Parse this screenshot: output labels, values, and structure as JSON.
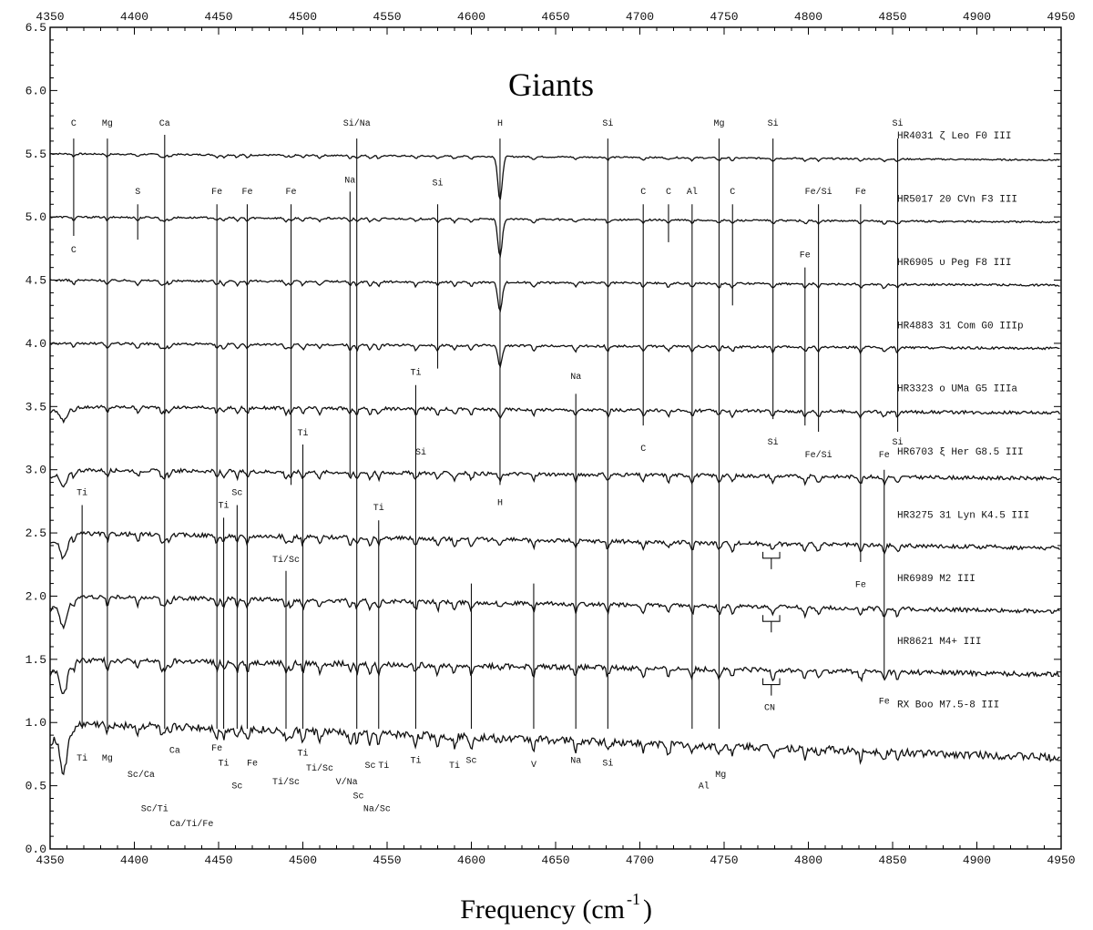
{
  "chart_data": {
    "type": "line",
    "title": "Giants",
    "xlabel": "Frequency (cm",
    "xlabel_sup": "-1",
    "xlabel_close": ")",
    "ylabel": "",
    "xlim": [
      4350,
      4950
    ],
    "ylim": [
      0.0,
      6.5
    ],
    "xticks": [
      "4350",
      "4400",
      "4450",
      "4500",
      "4550",
      "4600",
      "4650",
      "4700",
      "4750",
      "4800",
      "4850",
      "4900",
      "4950"
    ],
    "yticks": [
      "0.0",
      "0.5",
      "1.0",
      "1.5",
      "2.0",
      "2.5",
      "3.0",
      "3.5",
      "4.0",
      "4.5",
      "5.0",
      "5.5",
      "6.0",
      "6.5"
    ],
    "series": [
      {
        "name": "HR4031 ζ Leo F0 III",
        "offset": 5.5,
        "noise": 0.006,
        "slope": -0.05,
        "edge": 0.0,
        "deep": 0.35
      },
      {
        "name": "HR5017 20 CVn F3 III",
        "offset": 5.0,
        "noise": 0.007,
        "slope": -0.04,
        "edge": 0.0,
        "deep": 0.3
      },
      {
        "name": "HR6905 υ Peg F8 III",
        "offset": 4.5,
        "noise": 0.008,
        "slope": -0.04,
        "edge": 0.0,
        "deep": 0.22
      },
      {
        "name": "HR4883 31 Com G0 IIIp",
        "offset": 4.0,
        "noise": 0.009,
        "slope": -0.04,
        "edge": 0.0,
        "deep": 0.16
      },
      {
        "name": "HR3323 o UMa G5 IIIa",
        "offset": 3.5,
        "noise": 0.012,
        "slope": -0.05,
        "edge": 0.1,
        "deep": 0.06
      },
      {
        "name": "HR6703 ξ Her G8.5 III",
        "offset": 3.0,
        "noise": 0.014,
        "slope": -0.07,
        "edge": 0.12,
        "deep": 0.05
      },
      {
        "name": "HR3275 31 Lyn K4.5 III",
        "offset": 2.5,
        "noise": 0.016,
        "slope": -0.12,
        "edge": 0.18,
        "deep": 0.03
      },
      {
        "name": "HR6989 M2 III",
        "offset": 2.0,
        "noise": 0.016,
        "slope": -0.12,
        "edge": 0.22,
        "deep": 0.02
      },
      {
        "name": "HR8621 M4+ III",
        "offset": 1.5,
        "noise": 0.02,
        "slope": -0.12,
        "edge": 0.25,
        "deep": 0.02
      },
      {
        "name": "RX Boo M7.5-8 III",
        "offset": 1.0,
        "noise": 0.03,
        "slope": -0.28,
        "edge": 0.35,
        "deep": 0.02
      }
    ],
    "annotations": [
      {
        "text": "C",
        "x": 4364,
        "y": 5.72,
        "top": 5.62,
        "bot": 4.85
      },
      {
        "text": "C",
        "x": 4364,
        "y": 4.72,
        "top": null,
        "bot": null
      },
      {
        "text": "Mg",
        "x": 4384,
        "y": 5.72,
        "top": 5.62,
        "bot": 0.95
      },
      {
        "text": "Mg",
        "x": 4384,
        "y": 0.7,
        "top": null,
        "bot": null
      },
      {
        "text": "Ca",
        "x": 4418,
        "y": 5.72,
        "top": 5.65,
        "bot": 0.95
      },
      {
        "text": "S",
        "x": 4402,
        "y": 5.18,
        "top": 5.1,
        "bot": 4.82
      },
      {
        "text": "Fe",
        "x": 4449,
        "y": 5.18,
        "top": 5.1,
        "bot": 0.95
      },
      {
        "text": "Fe",
        "x": 4467,
        "y": 5.18,
        "top": 5.1,
        "bot": 0.95
      },
      {
        "text": "Fe",
        "x": 4493,
        "y": 5.18,
        "top": 5.1,
        "bot": 2.88
      },
      {
        "text": "Na",
        "x": 4528,
        "y": 5.27,
        "top": 5.2,
        "bot": 2.95
      },
      {
        "text": "Si/Na",
        "x": 4532,
        "y": 5.72,
        "top": 5.62,
        "bot": 0.95
      },
      {
        "text": "Si",
        "x": 4580,
        "y": 5.25,
        "top": 5.1,
        "bot": 3.8
      },
      {
        "text": "H",
        "x": 4617,
        "y": 5.72,
        "top": 5.62,
        "bot": 2.88
      },
      {
        "text": "H",
        "x": 4617,
        "y": 2.72,
        "top": null,
        "bot": null
      },
      {
        "text": "Si",
        "x": 4681,
        "y": 5.72,
        "top": 5.62,
        "bot": 0.95
      },
      {
        "text": "C",
        "x": 4702,
        "y": 5.18,
        "top": 5.1,
        "bot": 3.35
      },
      {
        "text": "C",
        "x": 4702,
        "y": 3.15,
        "top": null,
        "bot": null
      },
      {
        "text": "C",
        "x": 4717,
        "y": 5.18,
        "top": 5.1,
        "bot": 4.8
      },
      {
        "text": "Al",
        "x": 4731,
        "y": 5.18,
        "top": 5.1,
        "bot": 0.95
      },
      {
        "text": "C",
        "x": 4755,
        "y": 5.18,
        "top": 5.1,
        "bot": 4.3
      },
      {
        "text": "Mg",
        "x": 4747,
        "y": 5.72,
        "top": 5.62,
        "bot": 0.95
      },
      {
        "text": "Si",
        "x": 4779,
        "y": 5.72,
        "top": 5.62,
        "bot": 3.4
      },
      {
        "text": "Si",
        "x": 4779,
        "y": 3.2,
        "top": null,
        "bot": null
      },
      {
        "text": "Fe/Si",
        "x": 4806,
        "y": 5.18,
        "top": 5.1,
        "bot": 3.3
      },
      {
        "text": "Fe/Si",
        "x": 4806,
        "y": 3.1,
        "top": null,
        "bot": null
      },
      {
        "text": "Fe",
        "x": 4798,
        "y": 4.68,
        "top": 4.6,
        "bot": 3.35
      },
      {
        "text": "Fe",
        "x": 4831,
        "y": 5.18,
        "top": 5.1,
        "bot": 2.27
      },
      {
        "text": "Fe",
        "x": 4831,
        "y": 2.07,
        "top": null,
        "bot": null
      },
      {
        "text": "Si",
        "x": 4853,
        "y": 5.72,
        "top": 5.62,
        "bot": 3.3
      },
      {
        "text": "Si",
        "x": 4853,
        "y": 3.2,
        "top": null,
        "bot": null
      },
      {
        "text": "Fe",
        "x": 4845,
        "y": 3.1,
        "top": 3.0,
        "bot": 1.35
      },
      {
        "text": "Fe",
        "x": 4845,
        "y": 1.15,
        "top": null,
        "bot": null
      },
      {
        "text": "Na",
        "x": 4662,
        "y": 3.72,
        "top": 3.6,
        "bot": 0.95
      },
      {
        "text": "Na",
        "x": 4662,
        "y": 0.68,
        "top": null,
        "bot": null
      },
      {
        "text": "Ti",
        "x": 4567,
        "y": 3.75,
        "top": 3.67,
        "bot": 0.95
      },
      {
        "text": "Si",
        "x": 4570,
        "y": 3.12,
        "top": null,
        "bot": null
      },
      {
        "text": "Ti",
        "x": 4500,
        "y": 3.27,
        "top": 3.2,
        "bot": 0.95
      },
      {
        "text": "Ti",
        "x": 4369,
        "y": 2.8,
        "top": 2.72,
        "bot": 0.95
      },
      {
        "text": "Ti",
        "x": 4369,
        "y": 0.7,
        "top": null,
        "bot": null
      },
      {
        "text": "Ti",
        "x": 4453,
        "y": 2.7,
        "top": 2.62,
        "bot": 0.95
      },
      {
        "text": "Sc",
        "x": 4461,
        "y": 2.8,
        "top": 2.72,
        "bot": 0.95
      },
      {
        "text": "Ti",
        "x": 4545,
        "y": 2.68,
        "top": 2.6,
        "bot": 0.95
      },
      {
        "text": "Ti/Sc",
        "x": 4490,
        "y": 2.27,
        "top": 2.2,
        "bot": 0.95
      },
      {
        "text": "Sc",
        "x": 4600,
        "y": 0.68,
        "top": 2.1,
        "bot": 0.95
      },
      {
        "text": "V",
        "x": 4637,
        "y": 0.65,
        "top": 2.1,
        "bot": 0.95
      },
      {
        "text": "CN",
        "x": 4777,
        "y": 1.1,
        "top": null,
        "bot": null
      },
      {
        "text": "Fe",
        "x": 4449,
        "y": 0.78,
        "top": null,
        "bot": null
      },
      {
        "text": "Ti",
        "x": 4453,
        "y": 0.66,
        "top": null,
        "bot": null
      },
      {
        "text": "Sc",
        "x": 4461,
        "y": 0.48,
        "top": null,
        "bot": null
      },
      {
        "text": "Fe",
        "x": 4470,
        "y": 0.66,
        "top": null,
        "bot": null
      },
      {
        "text": "Ti/Sc",
        "x": 4490,
        "y": 0.51,
        "top": null,
        "bot": null
      },
      {
        "text": "Ti",
        "x": 4500,
        "y": 0.74,
        "top": null,
        "bot": null
      },
      {
        "text": "Ti/Sc",
        "x": 4510,
        "y": 0.62,
        "top": null,
        "bot": null
      },
      {
        "text": "V/Na",
        "x": 4526,
        "y": 0.51,
        "top": null,
        "bot": null
      },
      {
        "text": "Sc",
        "x": 4533,
        "y": 0.4,
        "top": null,
        "bot": null
      },
      {
        "text": "Sc",
        "x": 4540,
        "y": 0.64,
        "top": null,
        "bot": null
      },
      {
        "text": "Ti",
        "x": 4548,
        "y": 0.64,
        "top": null,
        "bot": null
      },
      {
        "text": "Na/Sc",
        "x": 4544,
        "y": 0.3,
        "top": null,
        "bot": null
      },
      {
        "text": "Ti",
        "x": 4567,
        "y": 0.68,
        "top": null,
        "bot": null
      },
      {
        "text": "Ti",
        "x": 4590,
        "y": 0.64,
        "top": null,
        "bot": null
      },
      {
        "text": "Si",
        "x": 4681,
        "y": 0.66,
        "top": null,
        "bot": null
      },
      {
        "text": "Al",
        "x": 4738,
        "y": 0.48,
        "top": null,
        "bot": null
      },
      {
        "text": "Mg",
        "x": 4748,
        "y": 0.57,
        "top": null,
        "bot": null
      },
      {
        "text": "Ca",
        "x": 4424,
        "y": 0.76,
        "top": null,
        "bot": null
      },
      {
        "text": "Sc/Ca",
        "x": 4404,
        "y": 0.57,
        "top": null,
        "bot": null
      },
      {
        "text": "Sc/Ti",
        "x": 4412,
        "y": 0.3,
        "top": null,
        "bot": null
      },
      {
        "text": "Ca/Ti/Fe",
        "x": 4434,
        "y": 0.18,
        "top": null,
        "bot": null
      }
    ]
  }
}
